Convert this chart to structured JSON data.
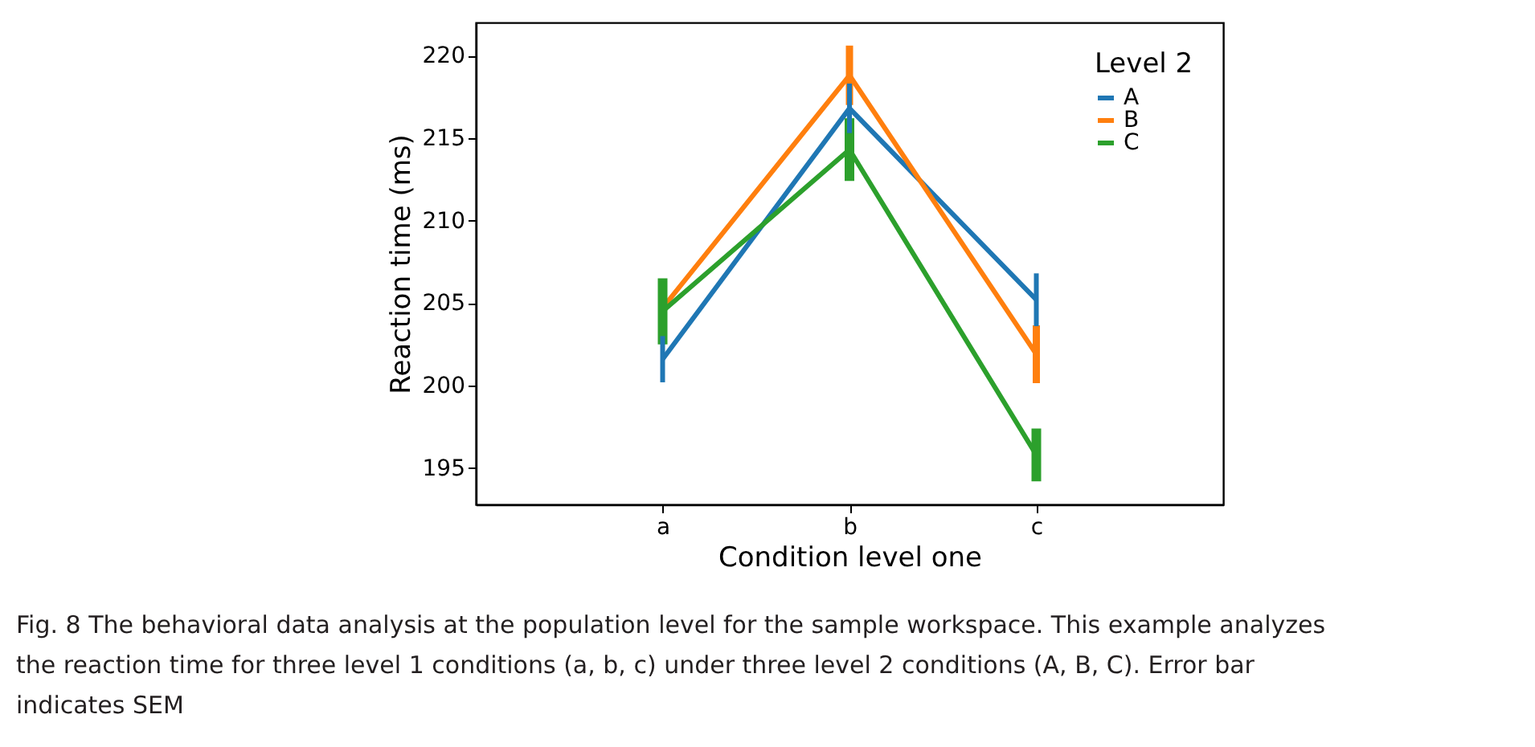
{
  "chart_data": {
    "type": "line",
    "categories": [
      "a",
      "b",
      "c"
    ],
    "xlabel": "Condition level one",
    "ylabel": "Reaction time (ms)",
    "legend_title": "Level 2",
    "series": [
      {
        "name": "A",
        "color": "#1f77b4",
        "values": [
          201.6,
          216.8,
          205.2
        ],
        "errors": [
          1.4,
          1.5,
          1.6
        ]
      },
      {
        "name": "B",
        "color": "#ff7f0e",
        "values": [
          204.7,
          218.8,
          201.9
        ],
        "errors": [
          null,
          1.8,
          1.75
        ]
      },
      {
        "name": "C",
        "color": "#2ca02c",
        "values": [
          204.5,
          214.3,
          195.8
        ],
        "errors": [
          2.0,
          1.9,
          1.6
        ]
      }
    ],
    "ylim": [
      192.8,
      222
    ],
    "yticks": [
      195,
      200,
      205,
      210,
      215,
      220
    ],
    "grid": false,
    "legend": "top right",
    "marker": "none",
    "line_style": "solid",
    "annotations": [
      "Fig. 8  The behavioral data analysis at the population level for the sample workspace. This example analyzes the reaction time for three level 1 conditions (a, b, c) under three level 2 conditions (A, B, C). Error bar indicates SEM"
    ]
  }
}
